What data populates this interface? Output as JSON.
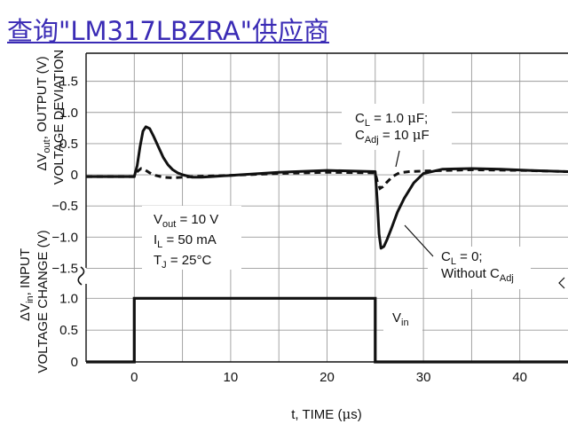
{
  "search_link": {
    "text": "查询\"LM317LBZRA\"供应商"
  },
  "chart_data": {
    "type": "line",
    "xlabel_parts": [
      "t, TIME (",
      "μ",
      "s)"
    ],
    "x_ticks": [
      0,
      10,
      20,
      30,
      40
    ],
    "xlim": [
      -5,
      45
    ],
    "grid": true,
    "top_panel": {
      "ylabel_line1_parts": [
        "Δ",
        "V",
        "out",
        ", OUTPUT (V)"
      ],
      "ylabel_line2": "VOLTAGE DEVIATION",
      "ylim": [
        -1.75,
        1.95
      ],
      "y_ticks": [
        1.5,
        1.0,
        0.5,
        0,
        -0.5,
        -1.0,
        -1.5
      ],
      "y_tick_labels": [
        "1.5",
        "1.0",
        "0.5",
        "0",
        "−0.5",
        "−1.0",
        "−1.5"
      ],
      "series": [
        {
          "label_parts": [
            [
              "C",
              ""
            ],
            [
              "L",
              "sub"
            ],
            [
              " = 0;",
              ""
            ],
            [
              "\nWithout C",
              ""
            ],
            [
              "Adj",
              "sub"
            ]
          ],
          "style": "solid",
          "x": [
            -5,
            0,
            0.3,
            0.6,
            0.9,
            1.2,
            1.6,
            2.0,
            2.5,
            3.0,
            3.5,
            4.0,
            4.5,
            5.0,
            6.0,
            7.0,
            8.0,
            10.0,
            15.0,
            20.0,
            25.0,
            25.2,
            25.4,
            25.6,
            25.9,
            26.2,
            26.7,
            27.3,
            28.0,
            29.0,
            30.0,
            32.0,
            35.0,
            38.0,
            41.0,
            45.0
          ],
          "y": [
            -0.03,
            -0.03,
            0.15,
            0.45,
            0.7,
            0.77,
            0.74,
            0.62,
            0.45,
            0.28,
            0.16,
            0.08,
            0.03,
            0.0,
            -0.04,
            -0.04,
            -0.03,
            -0.01,
            0.04,
            0.07,
            0.05,
            -0.4,
            -0.95,
            -1.18,
            -1.15,
            -1.05,
            -0.85,
            -0.6,
            -0.38,
            -0.13,
            0.02,
            0.09,
            0.1,
            0.09,
            0.07,
            0.05
          ]
        },
        {
          "label_parts": [
            [
              "C",
              ""
            ],
            [
              "L",
              "sub"
            ],
            [
              " = 1.0 ",
              ""
            ],
            [
              "μ",
              ""
            ],
            [
              "F;",
              ""
            ],
            [
              "\nC",
              ""
            ],
            [
              "Adj",
              "sub"
            ],
            [
              " = 10 ",
              ""
            ],
            [
              "μ",
              ""
            ],
            [
              "F",
              ""
            ]
          ],
          "style": "dashed",
          "x": [
            -5,
            0,
            0.3,
            0.7,
            1.1,
            1.6,
            2.2,
            3.0,
            4.0,
            5.0,
            6.0,
            8.0,
            10.0,
            15.0,
            20.0,
            25.0,
            25.2,
            25.5,
            25.8,
            26.2,
            26.8,
            27.5,
            28.5,
            30.0,
            35.0,
            40.0,
            45.0
          ],
          "y": [
            -0.03,
            -0.03,
            0.05,
            0.1,
            0.08,
            0.03,
            -0.01,
            -0.04,
            -0.05,
            -0.04,
            -0.03,
            -0.02,
            -0.01,
            0.02,
            0.04,
            0.03,
            -0.1,
            -0.22,
            -0.19,
            -0.12,
            -0.03,
            0.03,
            0.05,
            0.06,
            0.08,
            0.07,
            0.05
          ]
        }
      ],
      "conditions_parts": [
        [
          [
            "V",
            ""
          ],
          [
            "out",
            "sub"
          ],
          [
            " = 10 V",
            ""
          ]
        ],
        [
          [
            "I",
            ""
          ],
          [
            "L",
            "sub"
          ],
          [
            " = 50 mA",
            ""
          ]
        ],
        [
          [
            "T",
            ""
          ],
          [
            "J",
            "sub"
          ],
          [
            " = 25°C",
            ""
          ]
        ]
      ]
    },
    "bottom_panel": {
      "ylabel_line1_parts": [
        "Δ",
        "V",
        "in",
        ", INPUT"
      ],
      "ylabel_line2": "VOLTAGE CHANGE (V)",
      "ylim": [
        0,
        1.2
      ],
      "y_ticks": [
        1.0,
        0.5,
        0
      ],
      "y_tick_labels": [
        "1.0",
        "0.5",
        "0"
      ],
      "series": [
        {
          "label_parts": [
            [
              "V",
              ""
            ],
            [
              "in",
              "sub"
            ]
          ],
          "style": "solid",
          "x": [
            -5,
            0,
            0,
            25,
            25,
            45
          ],
          "y": [
            0,
            0,
            1.0,
            1.0,
            0,
            0
          ]
        }
      ]
    }
  }
}
